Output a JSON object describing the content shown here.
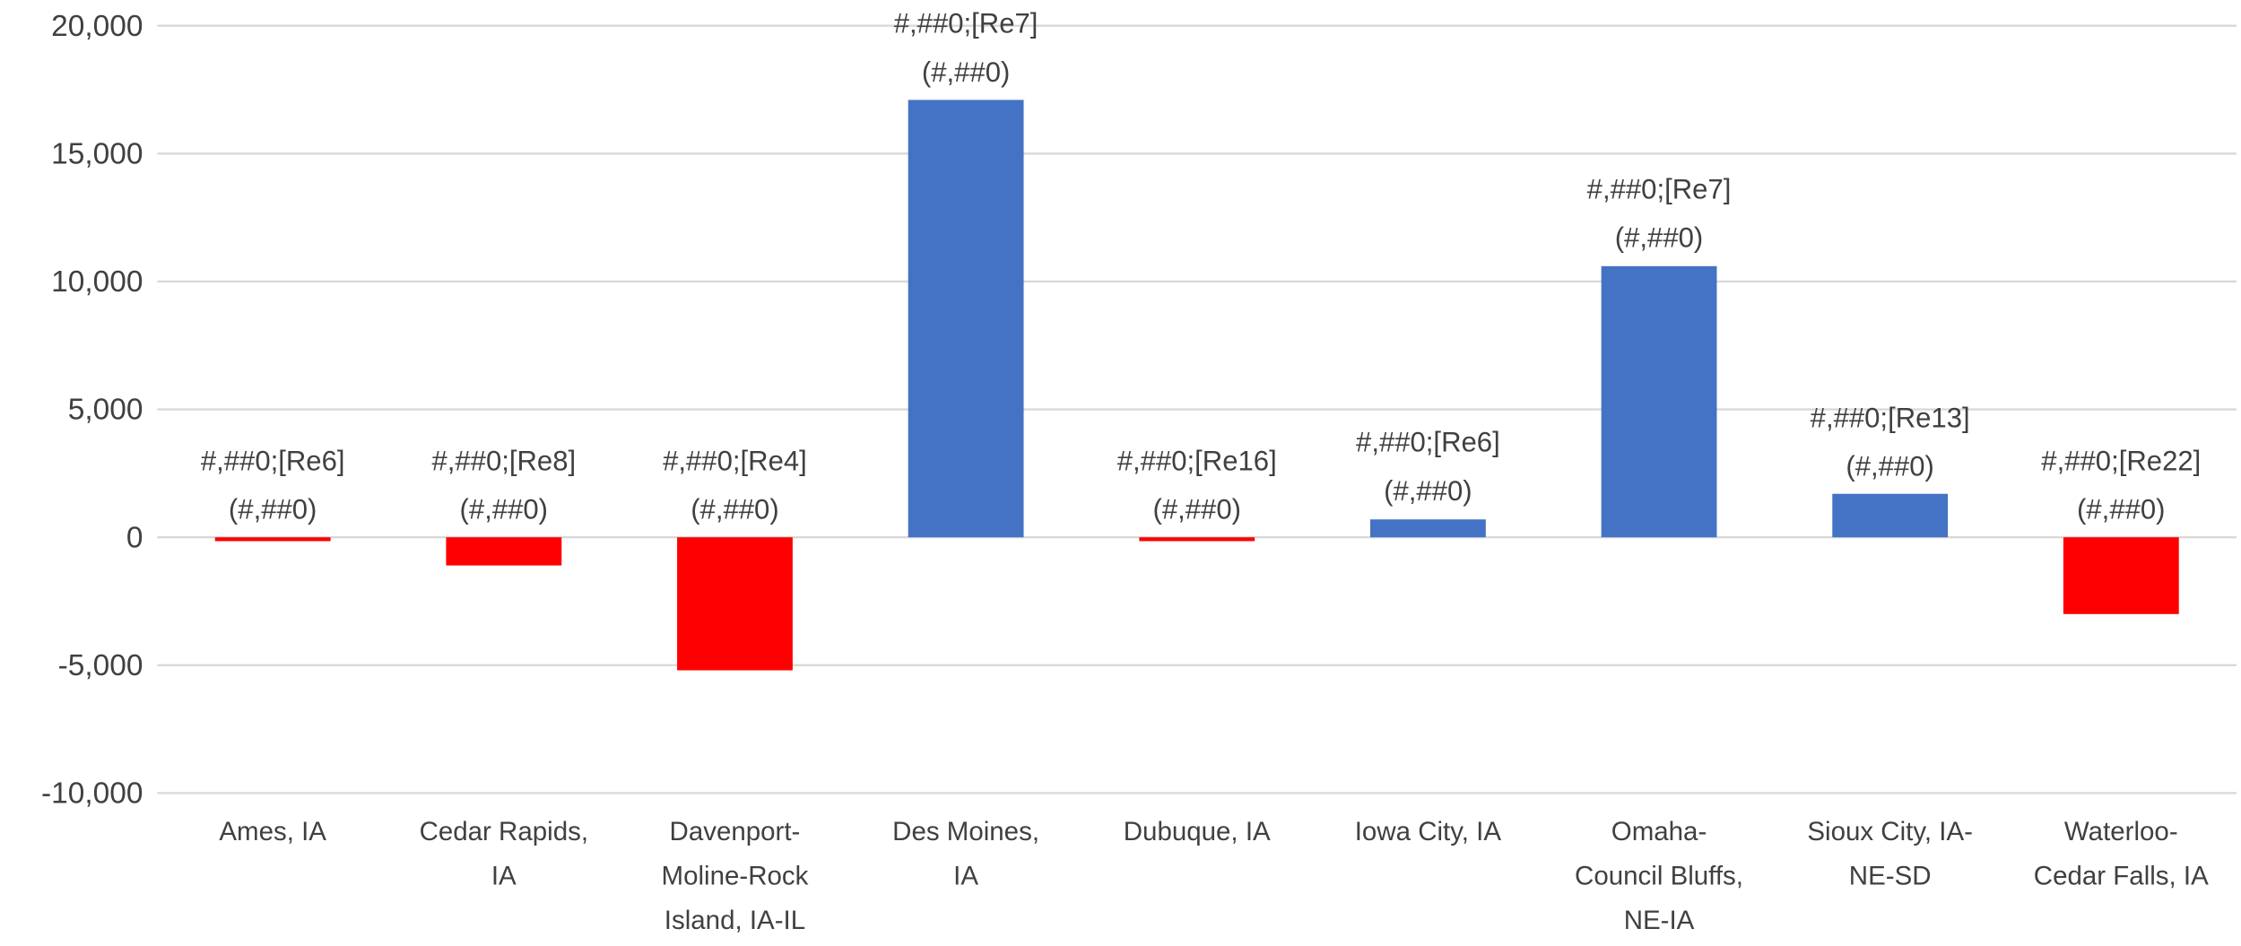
{
  "chart_data": {
    "type": "bar",
    "categories": [
      "Ames, IA",
      "Cedar Rapids,\nIA",
      "Davenport-\nMoline-Rock\nIsland, IA-IL",
      "Des Moines,\nIA",
      "Dubuque, IA",
      "Iowa City, IA",
      "Omaha-\nCouncil Bluffs,\nNE-IA",
      "Sioux City, IA-\nNE-SD",
      "Waterloo-\nCedar Falls, IA"
    ],
    "values": [
      -150,
      -1100,
      -5200,
      17100,
      -150,
      700,
      10600,
      1700,
      -3000
    ],
    "colors": [
      "#ff0000",
      "#ff0000",
      "#ff0000",
      "#4472c4",
      "#ff0000",
      "#4472c4",
      "#4472c4",
      "#4472c4",
      "#ff0000"
    ],
    "data_labels": [
      "#,##0;[Re6]\n(#,##0)",
      "#,##0;[Re8]\n(#,##0)",
      "#,##0;[Re4]\n(#,##0)",
      "#,##0;[Re7]\n(#,##0)",
      "#,##0;[Re16]\n(#,##0)",
      "#,##0;[Re6]\n(#,##0)",
      "#,##0;[Re7]\n(#,##0)",
      "#,##0;[Re13]\n(#,##0)",
      "#,##0;[Re22]\n(#,##0)"
    ],
    "ylim": [
      -10000,
      20000
    ],
    "yticks": [
      {
        "value": -10000,
        "label": "-10,000"
      },
      {
        "value": -5000,
        "label": "-5,000"
      },
      0,
      {
        "value": 5000,
        "label": "5,000"
      },
      {
        "value": 10000,
        "label": "10,000"
      },
      {
        "value": 15000,
        "label": "15,000"
      },
      {
        "value": 20000,
        "label": "20,000"
      }
    ],
    "grid": true
  }
}
